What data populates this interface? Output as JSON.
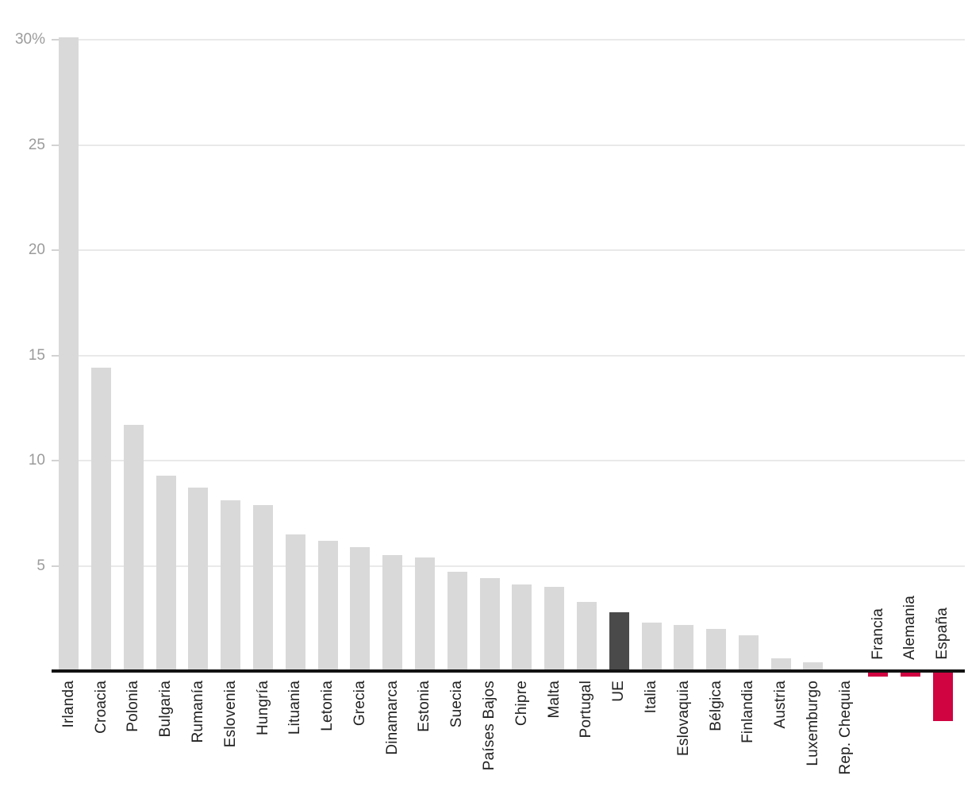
{
  "chart_data": {
    "type": "bar",
    "title": "",
    "xlabel": "",
    "ylabel": "",
    "ylim": [
      -3,
      30.5
    ],
    "grid": true,
    "legend": "none",
    "yticks": [
      {
        "value": 5,
        "label": "5"
      },
      {
        "value": 10,
        "label": "10"
      },
      {
        "value": 15,
        "label": "15"
      },
      {
        "value": 20,
        "label": "20"
      },
      {
        "value": 25,
        "label": "25"
      },
      {
        "value": 30,
        "label": "30%"
      }
    ],
    "bars": [
      {
        "label": "Irlanda",
        "value": 30.1,
        "style": "default"
      },
      {
        "label": "Croacia",
        "value": 14.4,
        "style": "default"
      },
      {
        "label": "Polonia",
        "value": 11.7,
        "style": "default"
      },
      {
        "label": "Bulgaria",
        "value": 9.3,
        "style": "default"
      },
      {
        "label": "Rumanía",
        "value": 8.7,
        "style": "default"
      },
      {
        "label": "Eslovenia",
        "value": 8.1,
        "style": "default"
      },
      {
        "label": "Hungría",
        "value": 7.9,
        "style": "default"
      },
      {
        "label": "Lituania",
        "value": 6.5,
        "style": "default"
      },
      {
        "label": "Letonia",
        "value": 6.2,
        "style": "default"
      },
      {
        "label": "Grecia",
        "value": 5.9,
        "style": "default"
      },
      {
        "label": "Dinamarca",
        "value": 5.5,
        "style": "default"
      },
      {
        "label": "Estonia",
        "value": 5.4,
        "style": "default"
      },
      {
        "label": "Suecia",
        "value": 4.7,
        "style": "default"
      },
      {
        "label": "Países Bajos",
        "value": 4.4,
        "style": "default"
      },
      {
        "label": "Chipre",
        "value": 4.1,
        "style": "default"
      },
      {
        "label": "Malta",
        "value": 4.0,
        "style": "default"
      },
      {
        "label": "Portugal",
        "value": 3.3,
        "style": "default"
      },
      {
        "label": "UE",
        "value": 2.8,
        "style": "dark"
      },
      {
        "label": "Italia",
        "value": 2.3,
        "style": "default"
      },
      {
        "label": "Eslovaquia",
        "value": 2.2,
        "style": "default"
      },
      {
        "label": "Bélgica",
        "value": 2.0,
        "style": "default"
      },
      {
        "label": "Finlandia",
        "value": 1.7,
        "style": "default"
      },
      {
        "label": "Austria",
        "value": 0.6,
        "style": "default"
      },
      {
        "label": "Luxemburgo",
        "value": 0.4,
        "style": "default"
      },
      {
        "label": "Rep. Chequia",
        "value": 0.0,
        "style": "default"
      },
      {
        "label": "Francia",
        "value": -0.2,
        "style": "accent"
      },
      {
        "label": "Alemania",
        "value": -0.2,
        "style": "accent"
      },
      {
        "label": "España",
        "value": -2.3,
        "style": "accent"
      }
    ]
  },
  "colors": {
    "default_bar": "#d9d9d9",
    "dark_bar": "#4a4a4a",
    "accent_bar": "#d10442",
    "gridline": "#e9e9e9",
    "tick": "#d2d2d2",
    "axis_line": "#121212",
    "ytick_text": "#9b9b9b",
    "xtick_text": "#212121",
    "background": "#ffffff"
  }
}
